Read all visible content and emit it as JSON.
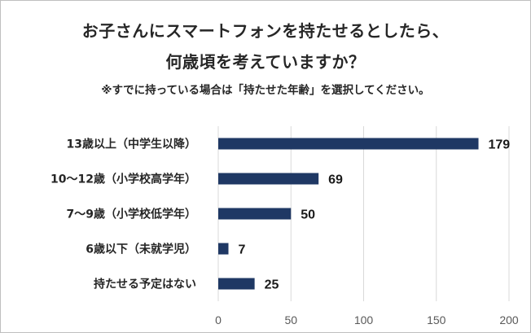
{
  "chart_data": {
    "type": "bar",
    "orientation": "horizontal",
    "title_line1": "お子さんにスマートフォンを持たせるとしたら、",
    "title_line2": "何歳頃を考えていますか？",
    "subtitle": "※すでに持っている場合は「持たせた年齢」を選択してください。",
    "categories": [
      "13歳以上（中学生以降）",
      "10〜12歳（小学校高学年）",
      "7〜9歳（小学校低学年）",
      "6歳以下（未就学児）",
      "持たせる予定はない"
    ],
    "values": [
      179,
      69,
      50,
      7,
      25
    ],
    "xlim": [
      0,
      200
    ],
    "xticks": [
      "0",
      "50",
      "100",
      "150",
      "200"
    ],
    "grid": true,
    "bar_color": "#1f3864",
    "grid_color": "#d9d9d9"
  }
}
